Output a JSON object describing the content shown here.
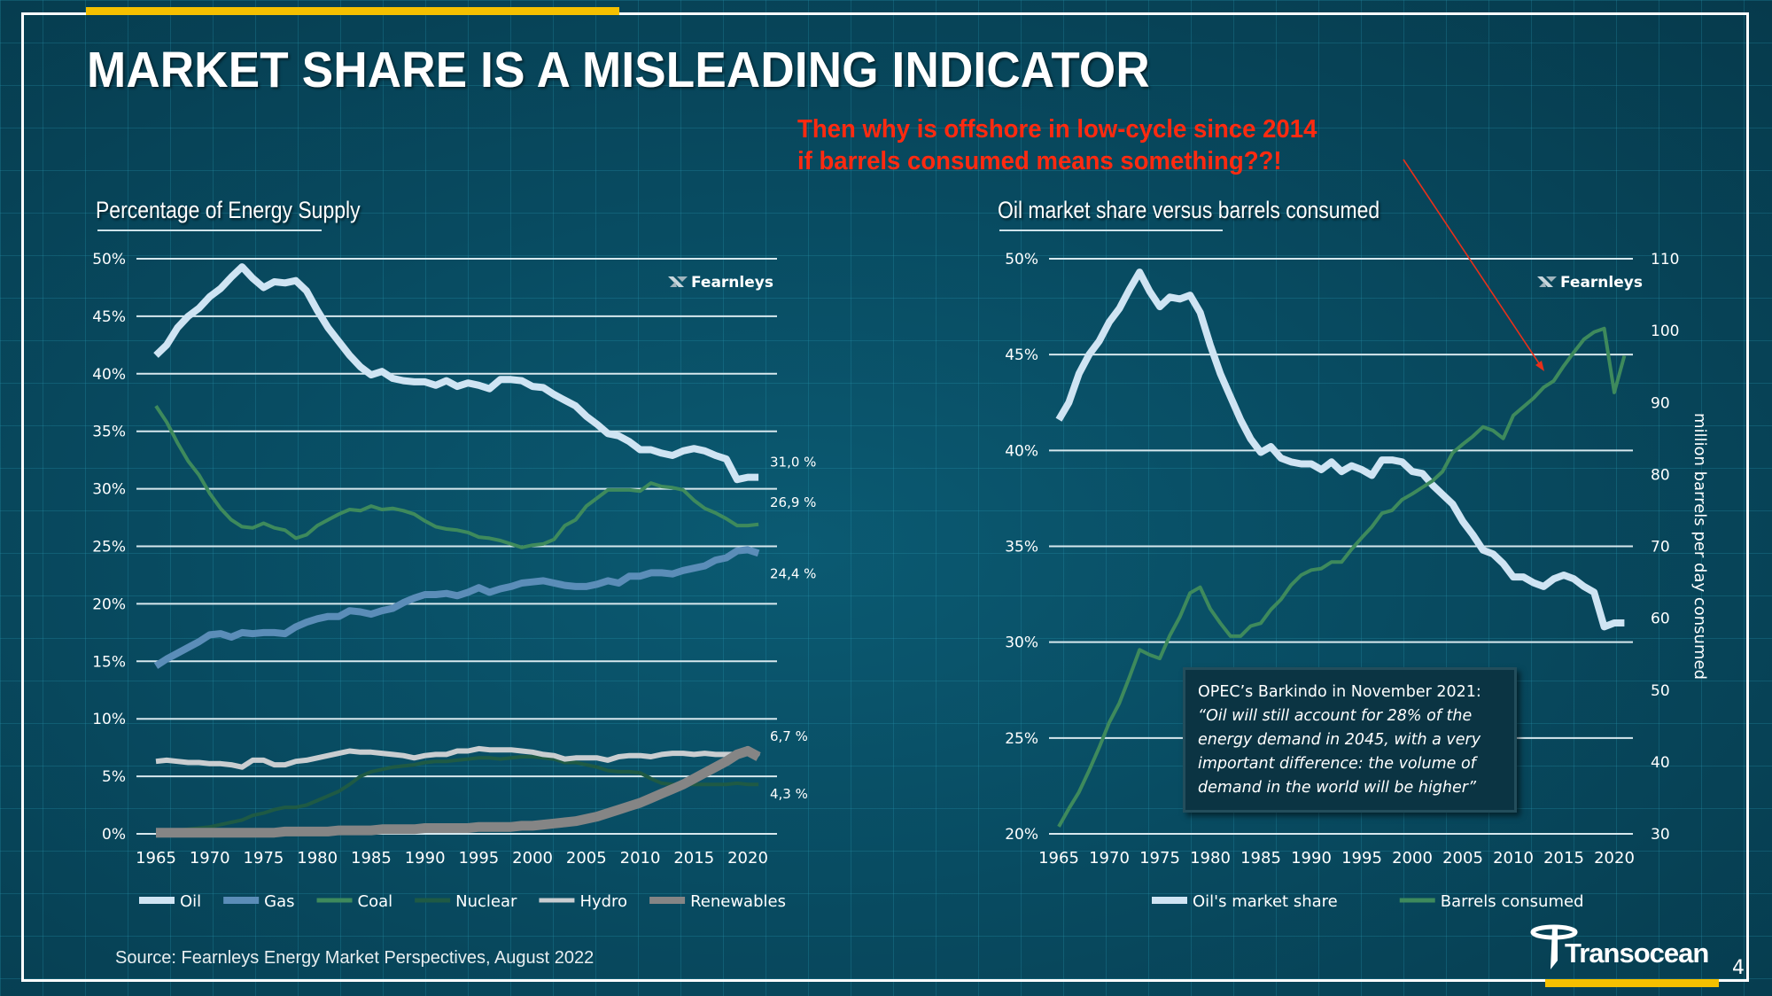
{
  "slide": {
    "title": "MARKET SHARE IS A MISLEADING INDICATOR",
    "callout_line1": "Then why is offshore in low-cycle since 2014",
    "callout_line2": "if barrels consumed means something??!",
    "source": "Source: Fearnleys Energy Market Perspectives, August 2022",
    "page_number": "4",
    "company_logo": "Transocean",
    "chart_logo": "Fearnleys",
    "colors": {
      "accent_yellow": "#f5c000",
      "callout_red": "#ff2a10",
      "background": "#084b61"
    },
    "quote": {
      "heading": "OPEC’s Barkindo in November 2021:",
      "lines": [
        "“Oil will still account for 28% of the",
        "energy demand in 2045, with a very",
        "important difference: the volume of",
        "demand in the world will be higher”"
      ]
    }
  },
  "chart_data": [
    {
      "type": "line",
      "title": "Percentage of Energy Supply",
      "xlabel": "",
      "ylabel": "",
      "x": [
        1965,
        1966,
        1967,
        1968,
        1969,
        1970,
        1971,
        1972,
        1973,
        1974,
        1975,
        1976,
        1977,
        1978,
        1979,
        1980,
        1981,
        1982,
        1983,
        1984,
        1985,
        1986,
        1987,
        1988,
        1989,
        1990,
        1991,
        1992,
        1993,
        1994,
        1995,
        1996,
        1997,
        1998,
        1999,
        2000,
        2001,
        2002,
        2003,
        2004,
        2005,
        2006,
        2007,
        2008,
        2009,
        2010,
        2011,
        2012,
        2013,
        2014,
        2015,
        2016,
        2017,
        2018,
        2019,
        2020,
        2021
      ],
      "xticks": [
        "1965",
        "1970",
        "1975",
        "1980",
        "1985",
        "1990",
        "1995",
        "2000",
        "2005",
        "2010",
        "2015",
        "2020"
      ],
      "yticks": [
        "0%",
        "5%",
        "10%",
        "15%",
        "20%",
        "25%",
        "30%",
        "35%",
        "40%",
        "45%",
        "50%"
      ],
      "ylim": [
        0,
        50
      ],
      "grid": "horizontal",
      "legend": "bottom",
      "series": [
        {
          "name": "Oil",
          "color": "#cfe4f3",
          "width": 8,
          "end_label": "31,0 %",
          "values": [
            41.6,
            42.5,
            44.0,
            45.0,
            45.7,
            46.7,
            47.4,
            48.4,
            49.3,
            48.3,
            47.5,
            48.0,
            47.9,
            48.1,
            47.2,
            45.5,
            44.0,
            42.8,
            41.6,
            40.6,
            39.9,
            40.2,
            39.6,
            39.4,
            39.3,
            39.3,
            39.0,
            39.4,
            38.9,
            39.2,
            39.0,
            38.7,
            39.5,
            39.5,
            39.4,
            38.9,
            38.8,
            38.2,
            37.7,
            37.2,
            36.3,
            35.6,
            34.8,
            34.6,
            34.1,
            33.4,
            33.4,
            33.1,
            32.9,
            33.3,
            33.5,
            33.3,
            32.9,
            32.6,
            30.8,
            31.0,
            31.0
          ]
        },
        {
          "name": "Gas",
          "color": "#5b8db8",
          "width": 8,
          "end_label": "24,4 %",
          "values": [
            14.6,
            15.2,
            15.7,
            16.2,
            16.7,
            17.3,
            17.4,
            17.1,
            17.5,
            17.4,
            17.5,
            17.5,
            17.4,
            18.0,
            18.4,
            18.7,
            18.9,
            18.9,
            19.4,
            19.3,
            19.1,
            19.4,
            19.6,
            20.1,
            20.5,
            20.8,
            20.8,
            20.9,
            20.7,
            21.0,
            21.4,
            21.0,
            21.3,
            21.5,
            21.8,
            21.9,
            22.0,
            21.8,
            21.6,
            21.5,
            21.5,
            21.7,
            22.0,
            21.8,
            22.4,
            22.4,
            22.7,
            22.7,
            22.6,
            22.9,
            23.1,
            23.3,
            23.8,
            24.0,
            24.6,
            24.7,
            24.4
          ]
        },
        {
          "name": "Coal",
          "color": "#3e8a5c",
          "width": 4,
          "end_label": "26,9 %",
          "values": [
            37.2,
            35.8,
            34.0,
            32.4,
            31.2,
            29.6,
            28.3,
            27.3,
            26.7,
            26.6,
            27.0,
            26.6,
            26.4,
            25.7,
            26.0,
            26.8,
            27.3,
            27.8,
            28.2,
            28.1,
            28.5,
            28.2,
            28.3,
            28.1,
            27.8,
            27.2,
            26.7,
            26.5,
            26.4,
            26.2,
            25.8,
            25.7,
            25.5,
            25.2,
            24.9,
            25.1,
            25.2,
            25.6,
            26.8,
            27.3,
            28.5,
            29.2,
            29.9,
            29.9,
            29.9,
            29.8,
            30.5,
            30.2,
            30.1,
            29.9,
            29.0,
            28.3,
            27.9,
            27.4,
            26.8,
            26.8,
            26.9
          ]
        },
        {
          "name": "Nuclear",
          "color": "#1f5a44",
          "width": 4,
          "end_label": "4,3 %",
          "values": [
            0.1,
            0.2,
            0.3,
            0.4,
            0.5,
            0.6,
            0.8,
            1.0,
            1.2,
            1.6,
            1.8,
            2.1,
            2.3,
            2.3,
            2.5,
            2.9,
            3.3,
            3.7,
            4.3,
            5.0,
            5.4,
            5.6,
            5.8,
            5.9,
            6.0,
            6.2,
            6.3,
            6.3,
            6.4,
            6.5,
            6.6,
            6.6,
            6.5,
            6.6,
            6.7,
            6.7,
            6.6,
            6.5,
            6.2,
            6.2,
            6.0,
            5.8,
            5.5,
            5.4,
            5.4,
            5.3,
            4.8,
            4.4,
            4.3,
            4.3,
            4.3,
            4.3,
            4.3,
            4.3,
            4.4,
            4.3,
            4.3
          ]
        },
        {
          "name": "Hydro",
          "color": "#c9cdd0",
          "width": 6,
          "end_label": "6,7 %",
          "values": [
            6.3,
            6.4,
            6.3,
            6.2,
            6.2,
            6.1,
            6.1,
            6.0,
            5.8,
            6.4,
            6.4,
            6.0,
            6.0,
            6.3,
            6.4,
            6.6,
            6.8,
            7.0,
            7.2,
            7.1,
            7.1,
            7.0,
            6.9,
            6.8,
            6.6,
            6.8,
            6.9,
            6.9,
            7.2,
            7.2,
            7.4,
            7.3,
            7.3,
            7.3,
            7.2,
            7.1,
            6.9,
            6.8,
            6.5,
            6.6,
            6.6,
            6.6,
            6.4,
            6.7,
            6.8,
            6.8,
            6.7,
            6.9,
            7.0,
            7.0,
            6.9,
            7.0,
            6.9,
            6.9,
            6.9,
            7.4,
            6.7
          ]
        },
        {
          "name": "Renewables",
          "color": "#858585",
          "width": 11,
          "end_label": "",
          "values": [
            0.1,
            0.1,
            0.1,
            0.1,
            0.1,
            0.1,
            0.1,
            0.1,
            0.1,
            0.1,
            0.1,
            0.1,
            0.2,
            0.2,
            0.2,
            0.2,
            0.2,
            0.3,
            0.3,
            0.3,
            0.3,
            0.4,
            0.4,
            0.4,
            0.4,
            0.5,
            0.5,
            0.5,
            0.5,
            0.5,
            0.6,
            0.6,
            0.6,
            0.6,
            0.7,
            0.7,
            0.8,
            0.9,
            1.0,
            1.1,
            1.3,
            1.5,
            1.8,
            2.1,
            2.4,
            2.7,
            3.1,
            3.5,
            3.9,
            4.3,
            4.8,
            5.3,
            5.8,
            6.3,
            6.9,
            7.2,
            6.7
          ]
        }
      ]
    },
    {
      "type": "line",
      "title": "Oil market share versus barrels consumed",
      "xlabel": "",
      "ylabel": "",
      "y2label": "million barrels per day consumed",
      "x": [
        1965,
        1966,
        1967,
        1968,
        1969,
        1970,
        1971,
        1972,
        1973,
        1974,
        1975,
        1976,
        1977,
        1978,
        1979,
        1980,
        1981,
        1982,
        1983,
        1984,
        1985,
        1986,
        1987,
        1988,
        1989,
        1990,
        1991,
        1992,
        1993,
        1994,
        1995,
        1996,
        1997,
        1998,
        1999,
        2000,
        2001,
        2002,
        2003,
        2004,
        2005,
        2006,
        2007,
        2008,
        2009,
        2010,
        2011,
        2012,
        2013,
        2014,
        2015,
        2016,
        2017,
        2018,
        2019,
        2020,
        2021
      ],
      "xticks": [
        "1965",
        "1970",
        "1975",
        "1980",
        "1985",
        "1990",
        "1995",
        "2000",
        "2005",
        "2010",
        "2015",
        "2020"
      ],
      "yticks": [
        "20%",
        "25%",
        "30%",
        "35%",
        "40%",
        "45%",
        "50%"
      ],
      "y2ticks": [
        "30",
        "40",
        "50",
        "60",
        "70",
        "80",
        "90",
        "100",
        "110"
      ],
      "ylim": [
        20,
        50
      ],
      "y2lim": [
        30,
        110
      ],
      "grid": "horizontal",
      "legend": "bottom",
      "annotation": "OPEC’s Barkindo quote box",
      "series": [
        {
          "name": "Oil's market share",
          "axis": "left",
          "color": "#cfe4f3",
          "width": 8,
          "values": [
            41.6,
            42.5,
            44.0,
            45.0,
            45.7,
            46.7,
            47.4,
            48.4,
            49.3,
            48.3,
            47.5,
            48.0,
            47.9,
            48.1,
            47.2,
            45.5,
            44.0,
            42.8,
            41.6,
            40.6,
            39.9,
            40.2,
            39.6,
            39.4,
            39.3,
            39.3,
            39.0,
            39.4,
            38.9,
            39.2,
            39.0,
            38.7,
            39.5,
            39.5,
            39.4,
            38.9,
            38.8,
            38.2,
            37.7,
            37.2,
            36.3,
            35.6,
            34.8,
            34.6,
            34.1,
            33.4,
            33.4,
            33.1,
            32.9,
            33.3,
            33.5,
            33.3,
            32.9,
            32.6,
            30.8,
            31.0,
            31.0
          ]
        },
        {
          "name": "Barrels consumed",
          "axis": "right",
          "color": "#3e8a5c",
          "width": 4,
          "values": [
            31.0,
            33.5,
            35.8,
            38.8,
            42.0,
            45.5,
            48.2,
            51.8,
            55.6,
            54.9,
            54.4,
            57.6,
            60.2,
            63.5,
            64.3,
            61.3,
            59.3,
            57.5,
            57.5,
            58.9,
            59.3,
            61.2,
            62.6,
            64.6,
            66.0,
            66.7,
            66.9,
            67.8,
            67.8,
            69.6,
            71.2,
            72.7,
            74.6,
            75.0,
            76.5,
            77.3,
            78.2,
            79.1,
            80.4,
            83.0,
            84.2,
            85.3,
            86.6,
            86.1,
            85.0,
            88.2,
            89.4,
            90.6,
            92.1,
            93.0,
            95.1,
            97.0,
            98.8,
            99.8,
            100.3,
            91.4,
            96.5
          ]
        }
      ]
    }
  ]
}
